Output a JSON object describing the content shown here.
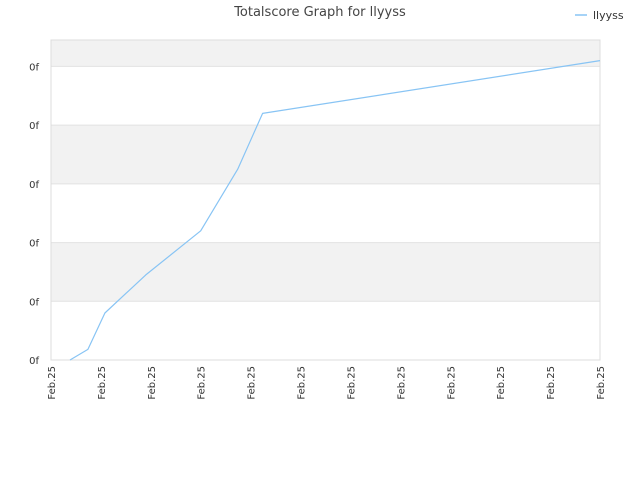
{
  "chart_data": {
    "type": "line",
    "title": "Totalscore Graph for llyyss",
    "xlabel": "",
    "ylabel": "",
    "legend_position": "top-right",
    "grid": true,
    "y_tick_labels": [
      "0f",
      "0f",
      "0f",
      "0f",
      "0f",
      "0f"
    ],
    "x_tick_labels": [
      "Feb.25",
      "Feb.25",
      "Feb.25",
      "Feb.25",
      "Feb.25",
      "Feb.25",
      "Feb.25",
      "Feb.25",
      "Feb.25",
      "Feb.25",
      "Feb.25",
      "Feb.25"
    ],
    "xlim": [
      0,
      11
    ],
    "ylim": [
      0,
      5.45
    ],
    "series": [
      {
        "name": "llyyss",
        "color": "#88c4f4",
        "x": [
          0.38,
          0.74,
          1.08,
          1.9,
          3.0,
          3.74,
          4.24,
          11.0
        ],
        "y": [
          0.0,
          0.18,
          0.8,
          1.45,
          2.2,
          3.25,
          4.2,
          5.1
        ]
      }
    ]
  }
}
